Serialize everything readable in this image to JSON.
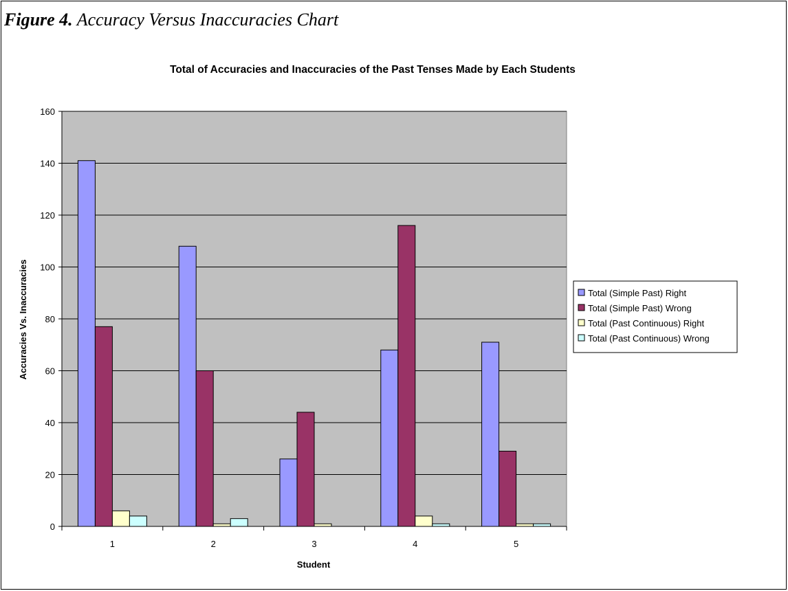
{
  "figure": {
    "number": "Figure 4.",
    "title": "Accuracy Versus Inaccuracies Chart"
  },
  "chart_data": {
    "type": "bar",
    "title": "Total of Accuracies and Inaccuracies of the Past Tenses Made by Each Students",
    "xlabel": "Student",
    "ylabel": "Accuracies Vs. Inaccuracies",
    "categories": [
      "1",
      "2",
      "3",
      "4",
      "5"
    ],
    "ylim": [
      0,
      160
    ],
    "yticks": [
      0,
      20,
      40,
      60,
      80,
      100,
      120,
      140,
      160
    ],
    "grid": true,
    "legend_position": "right",
    "plot_background": "#c0c0c0",
    "series": [
      {
        "name": "Total (Simple Past) Right",
        "color": "#9999ff",
        "values": [
          141,
          108,
          26,
          68,
          71
        ]
      },
      {
        "name": "Total (Simple Past) Wrong",
        "color": "#993366",
        "values": [
          77,
          60,
          44,
          116,
          29
        ]
      },
      {
        "name": "Total (Past Continuous) Right",
        "color": "#ffffcc",
        "values": [
          6,
          1,
          1,
          4,
          1
        ]
      },
      {
        "name": "Total (Past Continuous) Wrong",
        "color": "#ccffff",
        "values": [
          4,
          3,
          0,
          1,
          1
        ]
      }
    ]
  }
}
